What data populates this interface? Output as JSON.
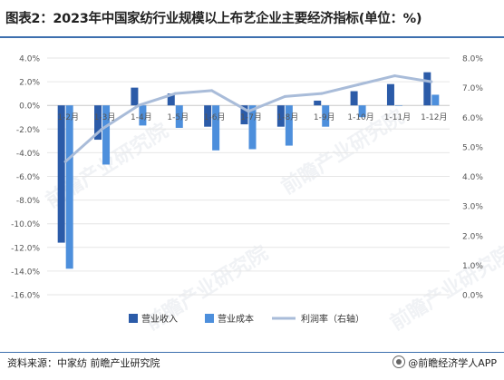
{
  "header": {
    "title": "图表2：2023年中国家纺行业规模以上布艺企业主要经济指标(单位：%)"
  },
  "footer": {
    "source": "资料来源：中家纺 前瞻产业研究院",
    "brand": "@前瞻经济学人APP"
  },
  "watermark": {
    "text": "前瞻产业研究院"
  },
  "colors": {
    "revenue": "#2b5ba8",
    "cost": "#4d8fdc",
    "profit_rate": "#a9bcd9",
    "grid": "#e6e6e6",
    "axis_text": "#555555"
  },
  "chart_data": {
    "type": "bar",
    "categories": [
      "1-2月",
      "1-3月",
      "1-4月",
      "1-5月",
      "1-6月",
      "1-7月",
      "1-8月",
      "1-9月",
      "1-10月",
      "1-11月",
      "1-12月"
    ],
    "series": [
      {
        "name": "营业收入",
        "type": "bar",
        "axis": "left",
        "values": [
          -11.6,
          -2.9,
          1.5,
          1.0,
          -1.8,
          -1.6,
          -1.8,
          0.4,
          1.2,
          1.8,
          2.8
        ]
      },
      {
        "name": "营业成本",
        "type": "bar",
        "axis": "left",
        "values": [
          -13.8,
          -5.0,
          -1.7,
          -1.9,
          -3.8,
          -3.7,
          -3.4,
          -1.8,
          -1.0,
          0.0,
          0.9
        ]
      },
      {
        "name": "利润率（右轴）",
        "type": "line",
        "axis": "right",
        "values": [
          4.5,
          5.6,
          6.4,
          6.8,
          6.9,
          6.2,
          6.7,
          6.8,
          7.1,
          7.4,
          7.2
        ]
      }
    ],
    "y_left": {
      "min": -16,
      "max": 4,
      "step": 2,
      "tick_labels": [
        "4.0%",
        "2.0%",
        "0.0%",
        "-2.0%",
        "-4.0%",
        "-6.0%",
        "-8.0%",
        "-10.0%",
        "-12.0%",
        "-14.0%",
        "-16.0%"
      ]
    },
    "y_right": {
      "min": 0,
      "max": 8,
      "step": 1,
      "tick_labels": [
        "8.0%",
        "7.0%",
        "6.0%",
        "5.0%",
        "4.0%",
        "3.0%",
        "2.0%",
        "1.0%",
        "0.0%"
      ]
    },
    "grid": true,
    "legend_position": "bottom"
  }
}
